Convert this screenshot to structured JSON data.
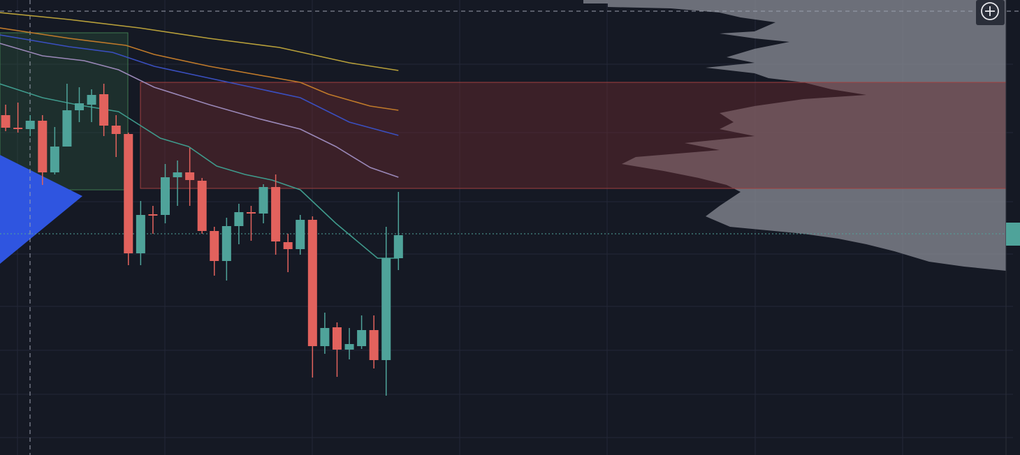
{
  "chart_data": {
    "type": "candlestick",
    "xlim": [
      -0.46,
      81.5
    ],
    "ylim": [
      0,
      652
    ],
    "up_color": "#4fa39a",
    "down_color": "#e2625d",
    "open": [
      487,
      469,
      467,
      479,
      405,
      442,
      494,
      502,
      517,
      472,
      460,
      289,
      345,
      344,
      398,
      405,
      393,
      321,
      278,
      328,
      348,
      346,
      384,
      305,
      295,
      337,
      156,
      183,
      151,
      156,
      179,
      136,
      282
    ],
    "high": [
      502,
      505,
      487,
      487,
      470,
      532,
      527,
      524,
      532,
      487,
      462,
      364,
      357,
      417,
      422,
      440,
      397,
      327,
      340,
      360,
      357,
      388,
      402,
      317,
      344,
      342,
      204,
      190,
      182,
      200,
      200,
      327,
      377
    ],
    "low": [
      464,
      462,
      457,
      387,
      402,
      442,
      477,
      477,
      457,
      427,
      272,
      272,
      317,
      332,
      357,
      357,
      317,
      257,
      250,
      302,
      307,
      332,
      287,
      262,
      287,
      111,
      145,
      112,
      137,
      152,
      124,
      85,
      265
    ],
    "close": [
      469,
      468,
      479,
      405,
      442,
      494,
      504,
      516,
      472,
      460,
      289,
      344,
      344,
      398,
      405,
      394,
      321,
      278,
      328,
      348,
      346,
      384,
      306,
      295,
      337,
      156,
      182,
      151,
      159,
      179,
      136,
      282,
      315
    ],
    "series": [
      {
        "color": "#b8a03a",
        "x": [
          -0.5,
          5.2,
          10.9,
          16.6,
          22.3,
          28.0,
          32.0
        ],
        "values": [
          634,
          624,
          612,
          597,
          584,
          562,
          551
        ]
      },
      {
        "color": "#c07a2a",
        "x": [
          -0.5,
          5.2,
          9.8,
          12.1,
          16.6,
          24.0,
          26.3,
          29.7,
          32.0
        ],
        "values": [
          612,
          597,
          587,
          574,
          557,
          534,
          517,
          500,
          494
        ]
      },
      {
        "color": "#3a4fc0",
        "x": [
          -0.5,
          5.2,
          8.7,
          12.1,
          16.6,
          24.0,
          28.0,
          32.0
        ],
        "values": [
          602,
          585,
          577,
          557,
          540,
          512,
          477,
          458
        ]
      },
      {
        "color": "#9a88b8",
        "x": [
          -0.5,
          3.0,
          6.4,
          9.2,
          12.1,
          16.6,
          20.6,
          24.0,
          26.9,
          29.7,
          32.0
        ],
        "values": [
          590,
          572,
          565,
          552,
          527,
          502,
          482,
          467,
          442,
          412,
          398
        ]
      },
      {
        "color": "#3f9a8c",
        "x": [
          -0.5,
          3.0,
          5.8,
          9.2,
          12.6,
          14.9,
          17.2,
          19.5,
          21.7,
          24.0,
          26.9,
          30.3,
          32.0
        ],
        "values": [
          532,
          512,
          502,
          492,
          454,
          442,
          414,
          402,
          394,
          380,
          332,
          282,
          282
        ]
      }
    ]
  }
}
